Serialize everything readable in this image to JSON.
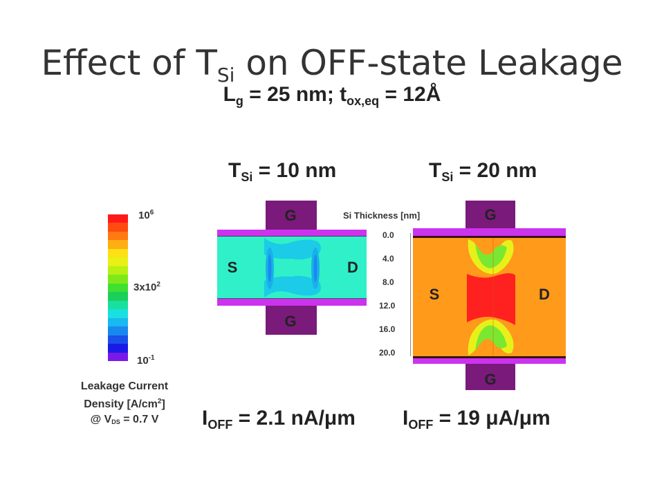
{
  "title": {
    "main": "Effect of T",
    "sub": "Si",
    "rest": " on OFF-state Leakage"
  },
  "subtitle": {
    "l": "L",
    "l_sub": "g",
    "mid": " = 25 nm; t",
    "t_sub": "ox,eq",
    "rest": " = 12Å"
  },
  "device_left": {
    "tsi_label": "T",
    "tsi_sub": "Si",
    "tsi_value": " = 10 nm",
    "gate_top": "G",
    "gate_bottom": "G",
    "source": "S",
    "drain": "D",
    "ioff_label": "I",
    "ioff_sub": "OFF",
    "ioff_value": " = 2.1 nA/μm"
  },
  "device_right": {
    "tsi_label": "T",
    "tsi_sub": "Si",
    "tsi_value": " = 20 nm",
    "gate_top": "G",
    "gate_bottom": "G",
    "source": "S",
    "drain": "D",
    "ioff_label": "I",
    "ioff_sub": "OFF",
    "ioff_value": " = 19 μA/μm"
  },
  "si_thickness": {
    "label": "Si Thickness [nm]",
    "ticks": [
      "0.0",
      "4.0",
      "8.0",
      "12.0",
      "16.0",
      "20.0"
    ]
  },
  "colorbar": {
    "top_label": "10",
    "top_sup": "6",
    "mid_label": "3x10",
    "mid_sup": "2",
    "bottom_label": "10",
    "bottom_sup": "-1",
    "colors": [
      "#ff1a1a",
      "#ff4a10",
      "#ff7a10",
      "#ffae14",
      "#ffe014",
      "#e8f014",
      "#b8f014",
      "#80e81a",
      "#40e030",
      "#1ad05a",
      "#18e0a0",
      "#18e0e0",
      "#18b8f0",
      "#1888f0",
      "#1850e8",
      "#1a1ae8",
      "#7a18e8"
    ]
  },
  "legend_caption": {
    "line1": "Leakage Current",
    "line2a": "Density [A/cm",
    "line2_sup": "2",
    "line2b": "]",
    "line3a": "@ V",
    "line3_sub": "DS",
    "line3b": " = 0.7 V"
  },
  "colors": {
    "gate": "#7a1a7a",
    "oxide": "#cc33ee",
    "channel_cool": "#2ff0c8",
    "channel_hot": "#ff9a1a",
    "core_hot": "#ff2020"
  }
}
